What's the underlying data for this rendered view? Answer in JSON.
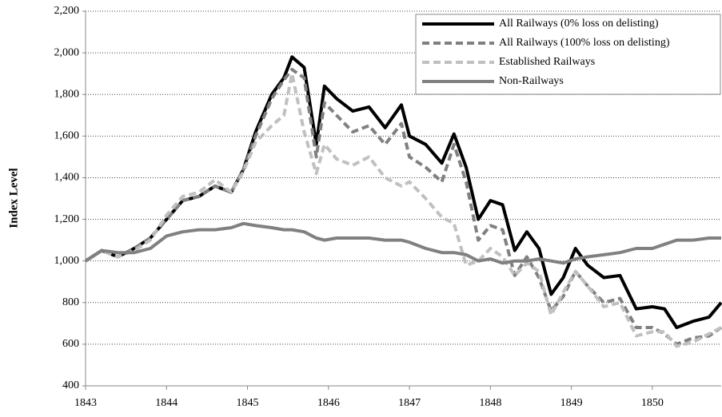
{
  "chart_data": {
    "type": "line",
    "ylabel": "Index Level",
    "x": [
      1843,
      1843.2,
      1843.4,
      1843.6,
      1843.8,
      1844.0,
      1844.2,
      1844.4,
      1844.6,
      1844.8,
      1844.95,
      1845.1,
      1845.3,
      1845.45,
      1845.55,
      1845.7,
      1845.85,
      1845.95,
      1846.1,
      1846.3,
      1846.5,
      1846.7,
      1846.9,
      1847.0,
      1847.2,
      1847.4,
      1847.55,
      1847.7,
      1847.85,
      1848.0,
      1848.15,
      1848.3,
      1848.45,
      1848.6,
      1848.75,
      1848.9,
      1849.05,
      1849.2,
      1849.4,
      1849.6,
      1849.8,
      1850.0,
      1850.15,
      1850.3,
      1850.5,
      1850.7,
      1850.85
    ],
    "series": [
      {
        "name": "All Railways (0% loss on delisting)",
        "color": "#000000",
        "dashed": false,
        "values": [
          1000,
          1050,
          1020,
          1060,
          1110,
          1200,
          1290,
          1310,
          1360,
          1330,
          1440,
          1620,
          1800,
          1880,
          1980,
          1930,
          1560,
          1840,
          1780,
          1720,
          1740,
          1640,
          1750,
          1600,
          1560,
          1470,
          1610,
          1450,
          1200,
          1290,
          1270,
          1050,
          1140,
          1060,
          840,
          920,
          1060,
          980,
          920,
          930,
          770,
          780,
          770,
          680,
          710,
          730,
          800
        ]
      },
      {
        "name": "All Railways (100% loss on delisting)",
        "color": "#808080",
        "dashed": true,
        "values": [
          1000,
          1050,
          1020,
          1060,
          1110,
          1200,
          1290,
          1310,
          1360,
          1330,
          1440,
          1600,
          1780,
          1870,
          1920,
          1880,
          1500,
          1760,
          1700,
          1620,
          1650,
          1560,
          1660,
          1500,
          1450,
          1380,
          1560,
          1380,
          1100,
          1170,
          1150,
          930,
          1020,
          920,
          760,
          830,
          950,
          880,
          800,
          820,
          680,
          680,
          650,
          600,
          630,
          640,
          680
        ]
      },
      {
        "name": "Established Railways",
        "color": "#c0c0c0",
        "dashed": true,
        "values": [
          1000,
          1050,
          1020,
          1050,
          1100,
          1220,
          1310,
          1330,
          1390,
          1330,
          1430,
          1570,
          1650,
          1700,
          1900,
          1620,
          1420,
          1560,
          1490,
          1460,
          1500,
          1400,
          1360,
          1380,
          1300,
          1210,
          1180,
          980,
          1000,
          1060,
          1020,
          930,
          990,
          950,
          740,
          850,
          950,
          880,
          780,
          800,
          640,
          660,
          660,
          590,
          610,
          650,
          680
        ]
      },
      {
        "name": "Non-Railways",
        "color": "#808080",
        "dashed": false,
        "values": [
          1000,
          1050,
          1040,
          1040,
          1060,
          1120,
          1140,
          1150,
          1150,
          1160,
          1180,
          1170,
          1160,
          1150,
          1150,
          1140,
          1110,
          1100,
          1110,
          1110,
          1110,
          1100,
          1100,
          1090,
          1060,
          1040,
          1040,
          1030,
          1000,
          1010,
          990,
          1000,
          1000,
          1010,
          1000,
          990,
          1010,
          1020,
          1030,
          1040,
          1060,
          1060,
          1080,
          1100,
          1100,
          1110,
          1110
        ]
      }
    ],
    "xlim": [
      1843,
      1850.85
    ],
    "xticks": [
      1843,
      1844,
      1845,
      1846,
      1847,
      1848,
      1849,
      1850
    ],
    "ylim": [
      400,
      2200
    ],
    "yticks": [
      {
        "value": 400,
        "label": "400"
      },
      {
        "value": 600,
        "label": "600"
      },
      {
        "value": 800,
        "label": "800"
      },
      {
        "value": 1000,
        "label": "1,000"
      },
      {
        "value": 1200,
        "label": "1,200"
      },
      {
        "value": 1400,
        "label": "1,400"
      },
      {
        "value": 1600,
        "label": "1,600"
      },
      {
        "value": 1800,
        "label": "1,800"
      },
      {
        "value": 2000,
        "label": "2,000"
      },
      {
        "value": 2200,
        "label": "2,200"
      }
    ],
    "grid": true,
    "legend": "top-right"
  }
}
